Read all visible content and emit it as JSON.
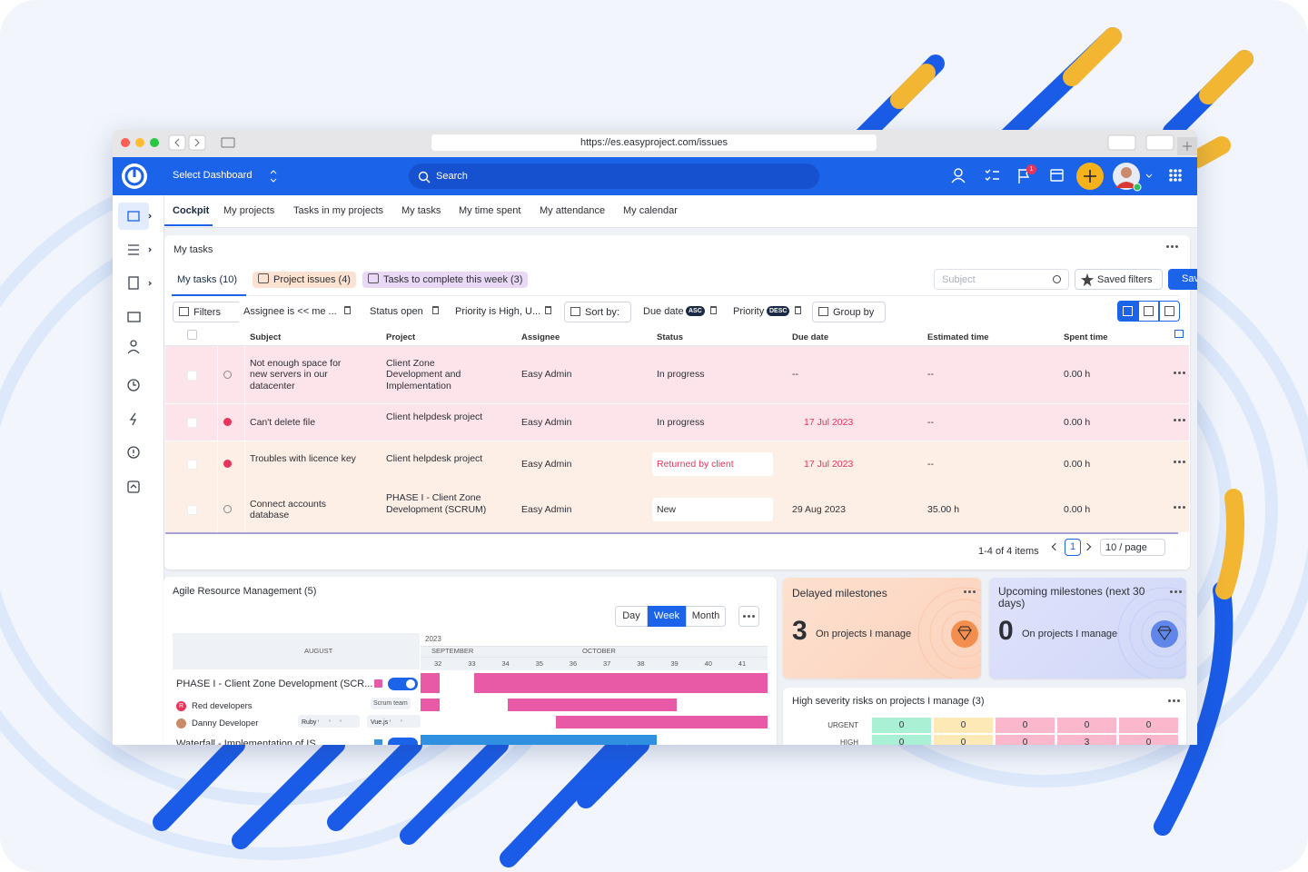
{
  "browser": {
    "url": "https://es.easyproject.com/issues"
  },
  "topbar": {
    "dashboard": "Select Dashboard",
    "search": "Search",
    "notification_count": "1"
  },
  "tabs": [
    "Cockpit",
    "My projects",
    "Tasks in my projects",
    "My tasks",
    "My time spent",
    "My attendance",
    "My calendar"
  ],
  "my_tasks": {
    "title": "My tasks",
    "filter_tabs": [
      "My tasks (10)",
      "Project issues (4)",
      "Tasks to complete this week (3)"
    ],
    "subject_placeholder": "Subject",
    "saved_filters": "Saved filters",
    "save": "Save",
    "filters": {
      "filters": "Filters",
      "assignee": "Assignee is << me ...",
      "status": "Status open",
      "priority": "Priority is High, U...",
      "sort_by": "Sort by:",
      "due_date": "Due date",
      "due_date_order": "ASC",
      "priority_sort": "Priority",
      "priority_order": "DESC",
      "group_by": "Group by"
    },
    "columns": [
      "Subject",
      "Project",
      "Assignee",
      "Status",
      "Due date",
      "Estimated time",
      "Spent time"
    ],
    "rows": [
      [
        "Not enough space for new servers in our datacenter",
        "Client Zone Development and Implementation",
        "Easy Admin",
        "In progress",
        "--",
        "--",
        "0.00 h"
      ],
      [
        "Can't delete file",
        "Client helpdesk project",
        "Easy Admin",
        "In progress",
        "17 Jul 2023",
        "--",
        "0.00 h"
      ],
      [
        "Troubles with licence key",
        "Client helpdesk project",
        "Easy Admin",
        "Returned by client",
        "17 Jul 2023",
        "--",
        "0.00 h"
      ],
      [
        "Connect accounts database",
        "PHASE I - Client Zone Development (SCRUM)",
        "Easy Admin",
        "New",
        "29 Aug 2023",
        "35.00 h",
        "0.00 h"
      ]
    ],
    "pagination": {
      "summary": "1-4 of 4 items",
      "page": "1",
      "per_page": "10 / page"
    }
  },
  "resource": {
    "title": "Agile Resource Management (5)",
    "views": [
      "Day",
      "Week",
      "Month"
    ],
    "year": "2023",
    "months": [
      "AUGUST",
      "SEPTEMBER",
      "OCTOBER"
    ],
    "weeks": [
      "32",
      "33",
      "34",
      "35",
      "36",
      "37",
      "38",
      "39",
      "40",
      "41"
    ],
    "project": "PHASE I - Client Zone Development (SCR...",
    "team": "Red developers",
    "team_tag": "Scrum team",
    "team_initial": "R",
    "person": "Danny Developer",
    "skills": [
      "Ruby",
      "Vue.js"
    ],
    "project2": "Waterfall - Implementation of IS"
  },
  "delayed": {
    "title": "Delayed milestones",
    "count": "3",
    "text": "On projects I manage"
  },
  "upcoming": {
    "title": "Upcoming milestones (next 30 days)",
    "count": "0",
    "text": "On projects I manage"
  },
  "risks": {
    "title": "High severity risks on projects I manage (3)",
    "rows": [
      {
        "label": "URGENT",
        "values": [
          "0",
          "0",
          "0",
          "0",
          "0"
        ]
      },
      {
        "label": "HIGH",
        "values": [
          "0",
          "0",
          "0",
          "3",
          "0"
        ]
      }
    ]
  }
}
